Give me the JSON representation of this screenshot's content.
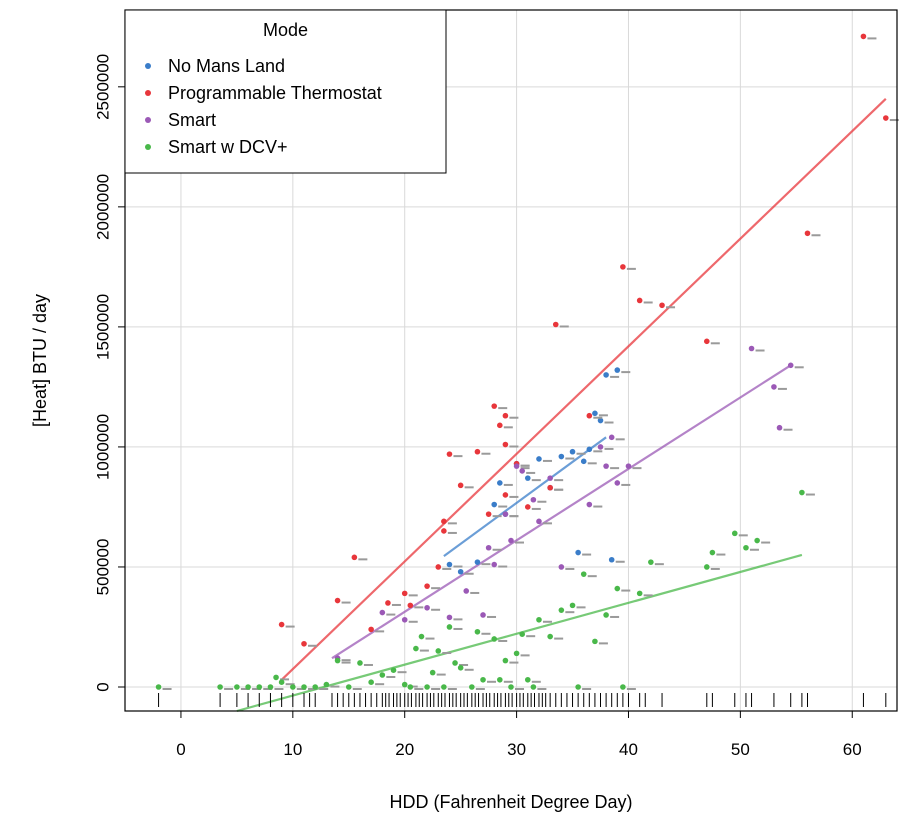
{
  "chart_data": {
    "type": "scatter",
    "xlabel": "HDD (Fahrenheit Degree Day)",
    "ylabel": "[Heat] BTU / day",
    "xlim": [
      -5,
      64
    ],
    "ylim": [
      -100000,
      2820000
    ],
    "xticks": [
      0,
      10,
      20,
      30,
      40,
      50,
      60
    ],
    "yticks": [
      0,
      500000,
      1000000,
      1500000,
      2000000,
      2500000
    ],
    "xtick_labels": [
      "0",
      "10",
      "20",
      "30",
      "40",
      "50",
      "60"
    ],
    "ytick_labels": [
      "0",
      "500000",
      "1000000",
      "1500000",
      "2000000",
      "2500000"
    ],
    "grid": true,
    "legend": {
      "title": "Mode",
      "position": "top-left",
      "entries": [
        "No Mans Land",
        "Programmable Thermostat",
        "Smart",
        "Smart w DCV+"
      ]
    },
    "series": [
      {
        "name": "No Mans Land",
        "color": "#3a7dc9",
        "points": [
          [
            24,
            510000
          ],
          [
            25,
            480000
          ],
          [
            26.5,
            520000
          ],
          [
            28.5,
            850000
          ],
          [
            29,
            720000
          ],
          [
            30,
            930000
          ],
          [
            31,
            870000
          ],
          [
            32,
            950000
          ],
          [
            33,
            830000
          ],
          [
            34,
            960000
          ],
          [
            35,
            980000
          ],
          [
            35.5,
            560000
          ],
          [
            36,
            940000
          ],
          [
            36.5,
            990000
          ],
          [
            37,
            1140000
          ],
          [
            37.5,
            1110000
          ],
          [
            38,
            1300000
          ],
          [
            39,
            1320000
          ],
          [
            38.5,
            530000
          ],
          [
            28,
            760000
          ]
        ],
        "fit": [
          [
            23.5,
            545000
          ],
          [
            38,
            1040000
          ]
        ]
      },
      {
        "name": "Programmable Thermostat",
        "color": "#e8363b",
        "points": [
          [
            9,
            260000
          ],
          [
            11,
            180000
          ],
          [
            14,
            360000
          ],
          [
            15.5,
            540000
          ],
          [
            17,
            240000
          ],
          [
            18.5,
            350000
          ],
          [
            20,
            390000
          ],
          [
            20.5,
            340000
          ],
          [
            22,
            420000
          ],
          [
            23,
            500000
          ],
          [
            23.5,
            650000
          ],
          [
            23.5,
            690000
          ],
          [
            24,
            970000
          ],
          [
            25,
            840000
          ],
          [
            26.5,
            980000
          ],
          [
            27.5,
            720000
          ],
          [
            28,
            1170000
          ],
          [
            28.5,
            1090000
          ],
          [
            29,
            1130000
          ],
          [
            29,
            1010000
          ],
          [
            29,
            800000
          ],
          [
            30,
            930000
          ],
          [
            31,
            750000
          ],
          [
            33,
            830000
          ],
          [
            33.5,
            1510000
          ],
          [
            36.5,
            1130000
          ],
          [
            39.5,
            1750000
          ],
          [
            41,
            1610000
          ],
          [
            43,
            1590000
          ],
          [
            47,
            1440000
          ],
          [
            56,
            1890000
          ],
          [
            61,
            2710000
          ],
          [
            63,
            2370000
          ]
        ],
        "fit": [
          [
            9,
            30000
          ],
          [
            63,
            2450000
          ]
        ]
      },
      {
        "name": "Smart",
        "color": "#9b59b6",
        "points": [
          [
            14,
            120000
          ],
          [
            18,
            310000
          ],
          [
            20,
            280000
          ],
          [
            22,
            330000
          ],
          [
            24,
            290000
          ],
          [
            25.5,
            400000
          ],
          [
            27,
            300000
          ],
          [
            27.5,
            580000
          ],
          [
            28,
            510000
          ],
          [
            29,
            720000
          ],
          [
            29.5,
            610000
          ],
          [
            30,
            920000
          ],
          [
            30.5,
            900000
          ],
          [
            31.5,
            780000
          ],
          [
            32,
            690000
          ],
          [
            33,
            870000
          ],
          [
            34,
            500000
          ],
          [
            36.5,
            760000
          ],
          [
            38,
            920000
          ],
          [
            38.5,
            1040000
          ],
          [
            39,
            850000
          ],
          [
            40,
            920000
          ],
          [
            51,
            1410000
          ],
          [
            53,
            1250000
          ],
          [
            53.5,
            1080000
          ],
          [
            54.5,
            1340000
          ],
          [
            37.5,
            1000000
          ]
        ],
        "fit": [
          [
            13.5,
            120000
          ],
          [
            54.5,
            1340000
          ]
        ]
      },
      {
        "name": "Smart w DCV+",
        "color": "#49b84a",
        "points": [
          [
            -2,
            0
          ],
          [
            3.5,
            0
          ],
          [
            5,
            0
          ],
          [
            6,
            0
          ],
          [
            7,
            0
          ],
          [
            8,
            0
          ],
          [
            8.5,
            40000
          ],
          [
            9,
            20000
          ],
          [
            10,
            0
          ],
          [
            11,
            0
          ],
          [
            12,
            0
          ],
          [
            13,
            10000
          ],
          [
            14,
            110000
          ],
          [
            15,
            0
          ],
          [
            16,
            100000
          ],
          [
            17,
            20000
          ],
          [
            18,
            50000
          ],
          [
            19,
            70000
          ],
          [
            20,
            10000
          ],
          [
            20.5,
            0
          ],
          [
            21,
            160000
          ],
          [
            21.5,
            210000
          ],
          [
            22,
            0
          ],
          [
            22.5,
            60000
          ],
          [
            23,
            150000
          ],
          [
            23.5,
            0
          ],
          [
            24,
            250000
          ],
          [
            24.5,
            100000
          ],
          [
            25,
            80000
          ],
          [
            26,
            0
          ],
          [
            26.5,
            230000
          ],
          [
            27,
            30000
          ],
          [
            28,
            200000
          ],
          [
            28.5,
            30000
          ],
          [
            29,
            110000
          ],
          [
            29.5,
            0
          ],
          [
            30,
            140000
          ],
          [
            30.5,
            220000
          ],
          [
            31,
            30000
          ],
          [
            31.5,
            0
          ],
          [
            32,
            280000
          ],
          [
            33,
            210000
          ],
          [
            34,
            320000
          ],
          [
            35,
            340000
          ],
          [
            35.5,
            0
          ],
          [
            36,
            470000
          ],
          [
            37,
            190000
          ],
          [
            38,
            300000
          ],
          [
            39,
            410000
          ],
          [
            39.5,
            0
          ],
          [
            41,
            390000
          ],
          [
            42,
            520000
          ],
          [
            47,
            500000
          ],
          [
            47.5,
            560000
          ],
          [
            49.5,
            640000
          ],
          [
            50.5,
            580000
          ],
          [
            51.5,
            610000
          ],
          [
            55.5,
            810000
          ]
        ],
        "fit": [
          [
            5,
            -100000
          ],
          [
            55.5,
            550000
          ]
        ]
      }
    ],
    "rug": [
      -2,
      3.5,
      5,
      6,
      7,
      8,
      9,
      10,
      11,
      11.5,
      12,
      13.5,
      14,
      14.5,
      15,
      15.5,
      16,
      16.5,
      17,
      17.5,
      18,
      18.3,
      18.6,
      19,
      19.3,
      19.6,
      20,
      20.3,
      20.6,
      21,
      21.3,
      21.6,
      22,
      22.3,
      22.6,
      23,
      23.3,
      23.6,
      24,
      24.3,
      24.6,
      25,
      25.3,
      25.6,
      26,
      26.3,
      26.6,
      27,
      27.3,
      27.6,
      28,
      28.3,
      28.6,
      29,
      29.3,
      29.6,
      30,
      30.3,
      30.6,
      31,
      31.3,
      31.6,
      32,
      32.3,
      32.6,
      33,
      33.5,
      34,
      34.5,
      35,
      35.5,
      36,
      36.5,
      37,
      37.5,
      38,
      38.5,
      39,
      39.5,
      40,
      41,
      41.5,
      43,
      47,
      47.5,
      49.5,
      50.5,
      51,
      53,
      54.5,
      55.5,
      56,
      61,
      63
    ]
  }
}
